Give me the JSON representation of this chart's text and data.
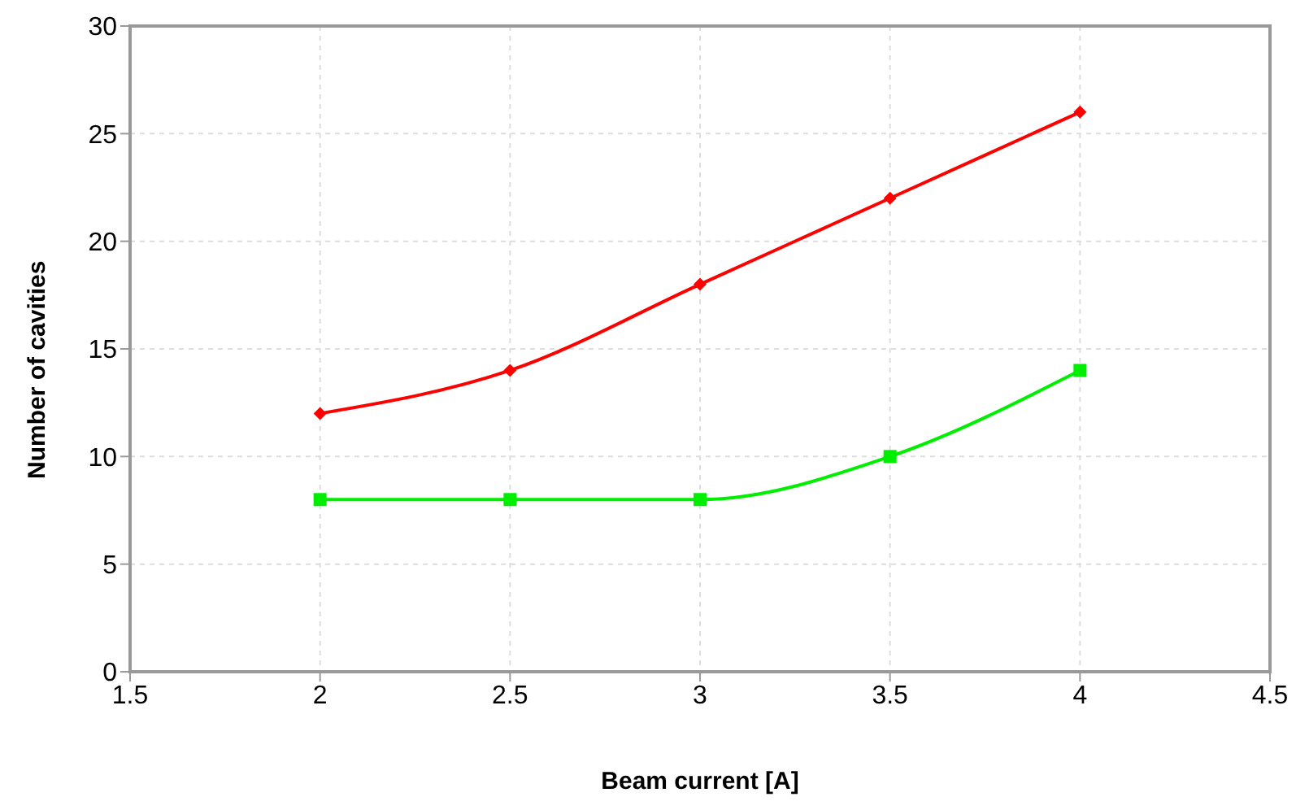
{
  "chart_data": {
    "type": "line",
    "xlabel": "Beam current [A]",
    "ylabel": "Number of cavities",
    "x": [
      2,
      2.5,
      3,
      3.5,
      4
    ],
    "series": [
      {
        "color": "#ff0000",
        "marker": "diamond",
        "values": [
          12,
          14,
          18,
          22,
          26
        ]
      },
      {
        "color": "#00ee00",
        "marker": "square",
        "values": [
          8,
          8,
          8,
          10,
          14
        ]
      }
    ],
    "xlim": [
      1.5,
      4.5
    ],
    "xticks": [
      1.5,
      2,
      2.5,
      3,
      3.5,
      4,
      4.5
    ],
    "ylim": [
      0,
      30
    ],
    "yticks": [
      0,
      5,
      10,
      15,
      20,
      25,
      30
    ],
    "grid": true,
    "legend": false,
    "line_style": "solid"
  }
}
